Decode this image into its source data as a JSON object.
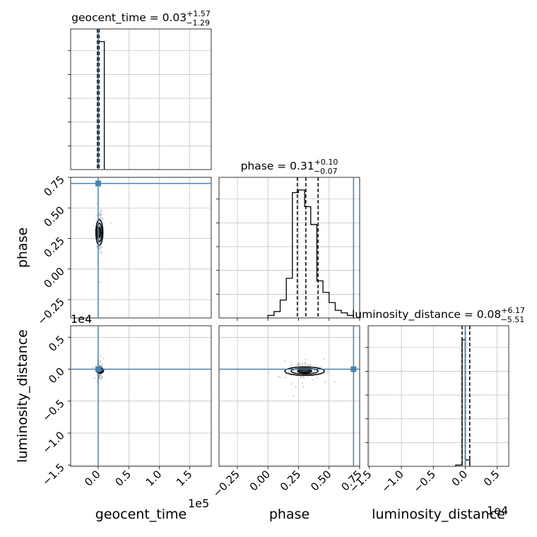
{
  "colors": {
    "truth": "#4682b4",
    "hist": "#000000",
    "grid": "#b0b0b0",
    "points": "#999999"
  },
  "chart_data": {
    "type": "corner",
    "parameters": [
      "geocent_time",
      "phase",
      "luminosity_distance"
    ],
    "truths": {
      "geocent_time": 0,
      "phase": 0.7,
      "luminosity_distance": 0
    },
    "titles": [
      {
        "parameter": "geocent_time",
        "text": "geocent_time = 0.03",
        "plus": "+1.57",
        "minus": "−1.29"
      },
      {
        "parameter": "phase",
        "text": "phase = 0.31",
        "plus": "+0.10",
        "minus": "−0.07"
      },
      {
        "parameter": "luminosity_distance",
        "text": "luminosity_distance = 0.08",
        "plus": "+6.17",
        "minus": "−5.51"
      }
    ],
    "axes": {
      "geocent_time": {
        "range": [
          -0.45,
          1.85
        ],
        "ticks": [
          0,
          0.5,
          1.0,
          1.5
        ],
        "tick_labels": [
          "0.0",
          "0.5",
          "1.0",
          "1.5"
        ],
        "offset": "1e5",
        "xlabel": "geocent_time"
      },
      "phase": {
        "range": [
          -0.4,
          0.75
        ],
        "ticks": [
          -0.25,
          0,
          0.25,
          0.5,
          0.75
        ],
        "tick_labels": [
          "−0.25",
          "0.00",
          "0.25",
          "0.50",
          "0.75"
        ],
        "xlabel": "phase",
        "ylabel": "phase"
      },
      "luminosity_distance": {
        "range": [
          -1.52,
          0.68
        ],
        "ticks": [
          -1.5,
          -1.0,
          -0.5,
          0,
          0.5
        ],
        "tick_labels": [
          "−1.5",
          "−1.0",
          "−0.5",
          "0.0",
          "0.5"
        ],
        "offset": "1e4",
        "xlabel": "luminosity_distance",
        "ylabel": "luminosity_distance"
      }
    },
    "diagonal": [
      {
        "parameter": "geocent_time",
        "bin_edges": [
          0.0,
          0.1
        ],
        "counts": [
          1.0
        ],
        "quantiles": [
          -0.013,
          0.0003,
          0.016
        ]
      },
      {
        "parameter": "phase",
        "bin_edges": [
          0.0,
          0.05,
          0.1,
          0.15,
          0.2,
          0.25,
          0.3,
          0.35,
          0.4,
          0.45,
          0.5,
          0.55,
          0.6,
          0.65,
          0.7
        ],
        "counts": [
          0.02,
          0.05,
          0.14,
          0.31,
          0.98,
          1.0,
          0.87,
          0.73,
          0.29,
          0.2,
          0.12,
          0.06,
          0.04,
          0.02
        ],
        "quantiles": [
          0.24,
          0.31,
          0.41
        ]
      },
      {
        "parameter": "luminosity_distance",
        "bin_edges": [
          -0.15,
          -0.05,
          0.0,
          0.07
        ],
        "counts": [
          0.01,
          0.99,
          0.05
        ],
        "quantiles": [
          -0.05,
          0.0008,
          0.07
        ]
      }
    ],
    "scatter": [
      {
        "x": "geocent_time",
        "y": "phase",
        "center": [
          0.02,
          0.3
        ],
        "spread": [
          0.02,
          0.08
        ]
      },
      {
        "x": "geocent_time",
        "y": "luminosity_distance",
        "center": [
          0.03,
          -0.02
        ],
        "spread": [
          0.02,
          0.05
        ]
      },
      {
        "x": "phase",
        "y": "luminosity_distance",
        "center": [
          0.3,
          -0.03
        ],
        "spread": [
          0.06,
          0.06
        ]
      }
    ]
  }
}
